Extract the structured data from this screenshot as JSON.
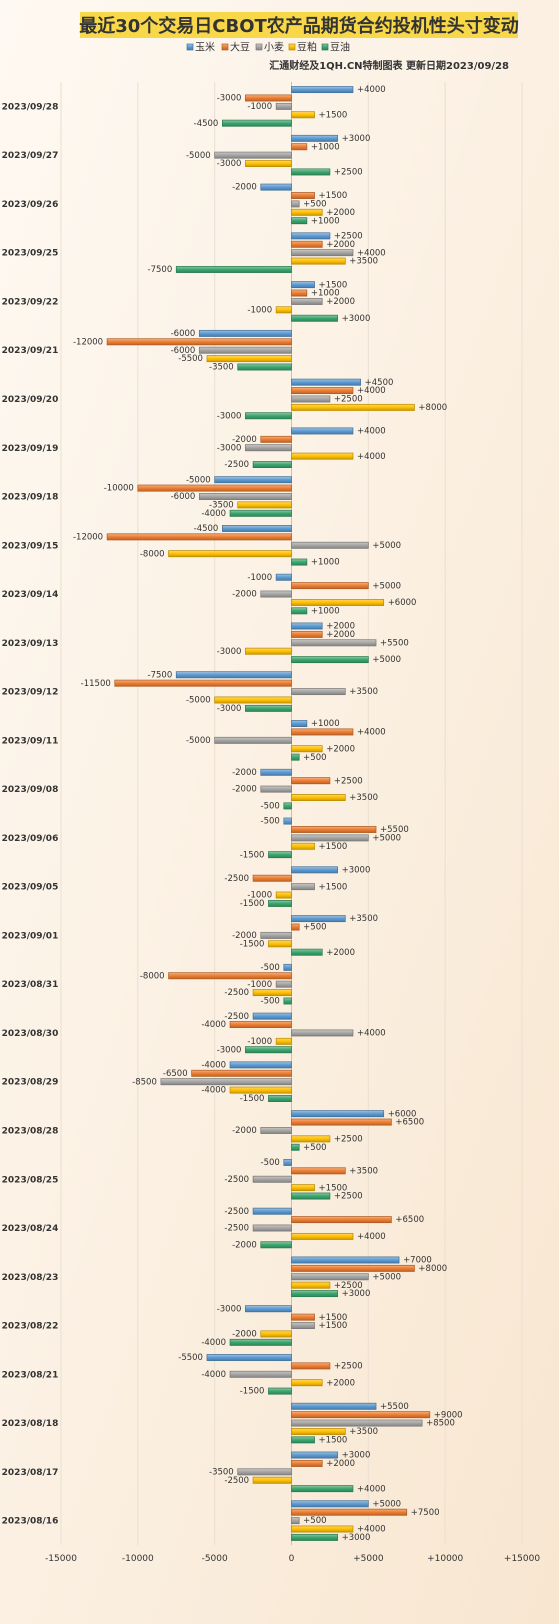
{
  "chart_data": {
    "type": "bar",
    "orientation": "horizontal",
    "title": "最近30个交易日CBOT农产品期货合约投机性头寸变动",
    "source_note": "汇通财经及1QH.CN特制图表 更新日期2023/09/28",
    "xlim": [
      -15000,
      15000
    ],
    "x_ticks": [
      "-15000",
      "-10000",
      "-5000",
      "0",
      "+5000",
      "+10000",
      "+15000"
    ],
    "grid": true,
    "legend_position": "top",
    "categories": [
      "2023/09/28",
      "2023/09/27",
      "2023/09/26",
      "2023/09/25",
      "2023/09/22",
      "2023/09/21",
      "2023/09/20",
      "2023/09/19",
      "2023/09/18",
      "2023/09/15",
      "2023/09/14",
      "2023/09/13",
      "2023/09/12",
      "2023/09/11",
      "2023/09/08",
      "2023/09/06",
      "2023/09/05",
      "2023/09/01",
      "2023/08/31",
      "2023/08/30",
      "2023/08/29",
      "2023/08/28",
      "2023/08/25",
      "2023/08/24",
      "2023/08/23",
      "2023/08/22",
      "2023/08/21",
      "2023/08/18",
      "2023/08/17",
      "2023/08/16"
    ],
    "series": [
      {
        "name": "玉米",
        "color": "#5b9bd5",
        "values": [
          4000,
          3000,
          -2000,
          2500,
          1500,
          -6000,
          4500,
          4000,
          -5000,
          -4500,
          -1000,
          2000,
          -7500,
          1000,
          -2000,
          -500,
          3000,
          3500,
          -500,
          -2500,
          -4000,
          6000,
          -500,
          -2500,
          7000,
          -3000,
          -5500,
          5500,
          3000,
          5000
        ]
      },
      {
        "name": "大豆",
        "color": "#ed7d31",
        "values": [
          -3000,
          1000,
          1500,
          2000,
          1000,
          -12000,
          4000,
          -2000,
          -10000,
          -12000,
          5000,
          2000,
          -11500,
          4000,
          2500,
          5500,
          -2500,
          500,
          -8000,
          -4000,
          -6500,
          6500,
          3500,
          6500,
          8000,
          1500,
          2500,
          9000,
          2000,
          7500
        ]
      },
      {
        "name": "小麦",
        "color": "#a5a5a5",
        "values": [
          -1000,
          -5000,
          500,
          4000,
          2000,
          -6000,
          2500,
          -3000,
          -6000,
          5000,
          -2000,
          5500,
          3500,
          -5000,
          -2000,
          5000,
          1500,
          -2000,
          -1000,
          4000,
          -8500,
          -2000,
          -2500,
          -2500,
          5000,
          1500,
          -4000,
          8500,
          -3500,
          500
        ]
      },
      {
        "name": "豆粕",
        "color": "#ffc000",
        "values": [
          1500,
          -3000,
          2000,
          3500,
          -1000,
          -5500,
          8000,
          4000,
          -3500,
          -8000,
          6000,
          -3000,
          -5000,
          2000,
          3500,
          1500,
          -1000,
          -1500,
          -2500,
          -1000,
          -4000,
          2500,
          1500,
          4000,
          2500,
          -2000,
          2000,
          3500,
          -2500,
          4000
        ]
      },
      {
        "name": "豆油",
        "color": "#3aa66f",
        "values": [
          -4500,
          2500,
          1000,
          -7500,
          3000,
          -3500,
          -3000,
          -2500,
          -4000,
          1000,
          1000,
          5000,
          -3000,
          500,
          -500,
          -1500,
          -1500,
          2000,
          -500,
          -3000,
          -1500,
          500,
          2500,
          -2000,
          3000,
          -4000,
          -1500,
          1500,
          4000,
          3000
        ]
      }
    ]
  }
}
